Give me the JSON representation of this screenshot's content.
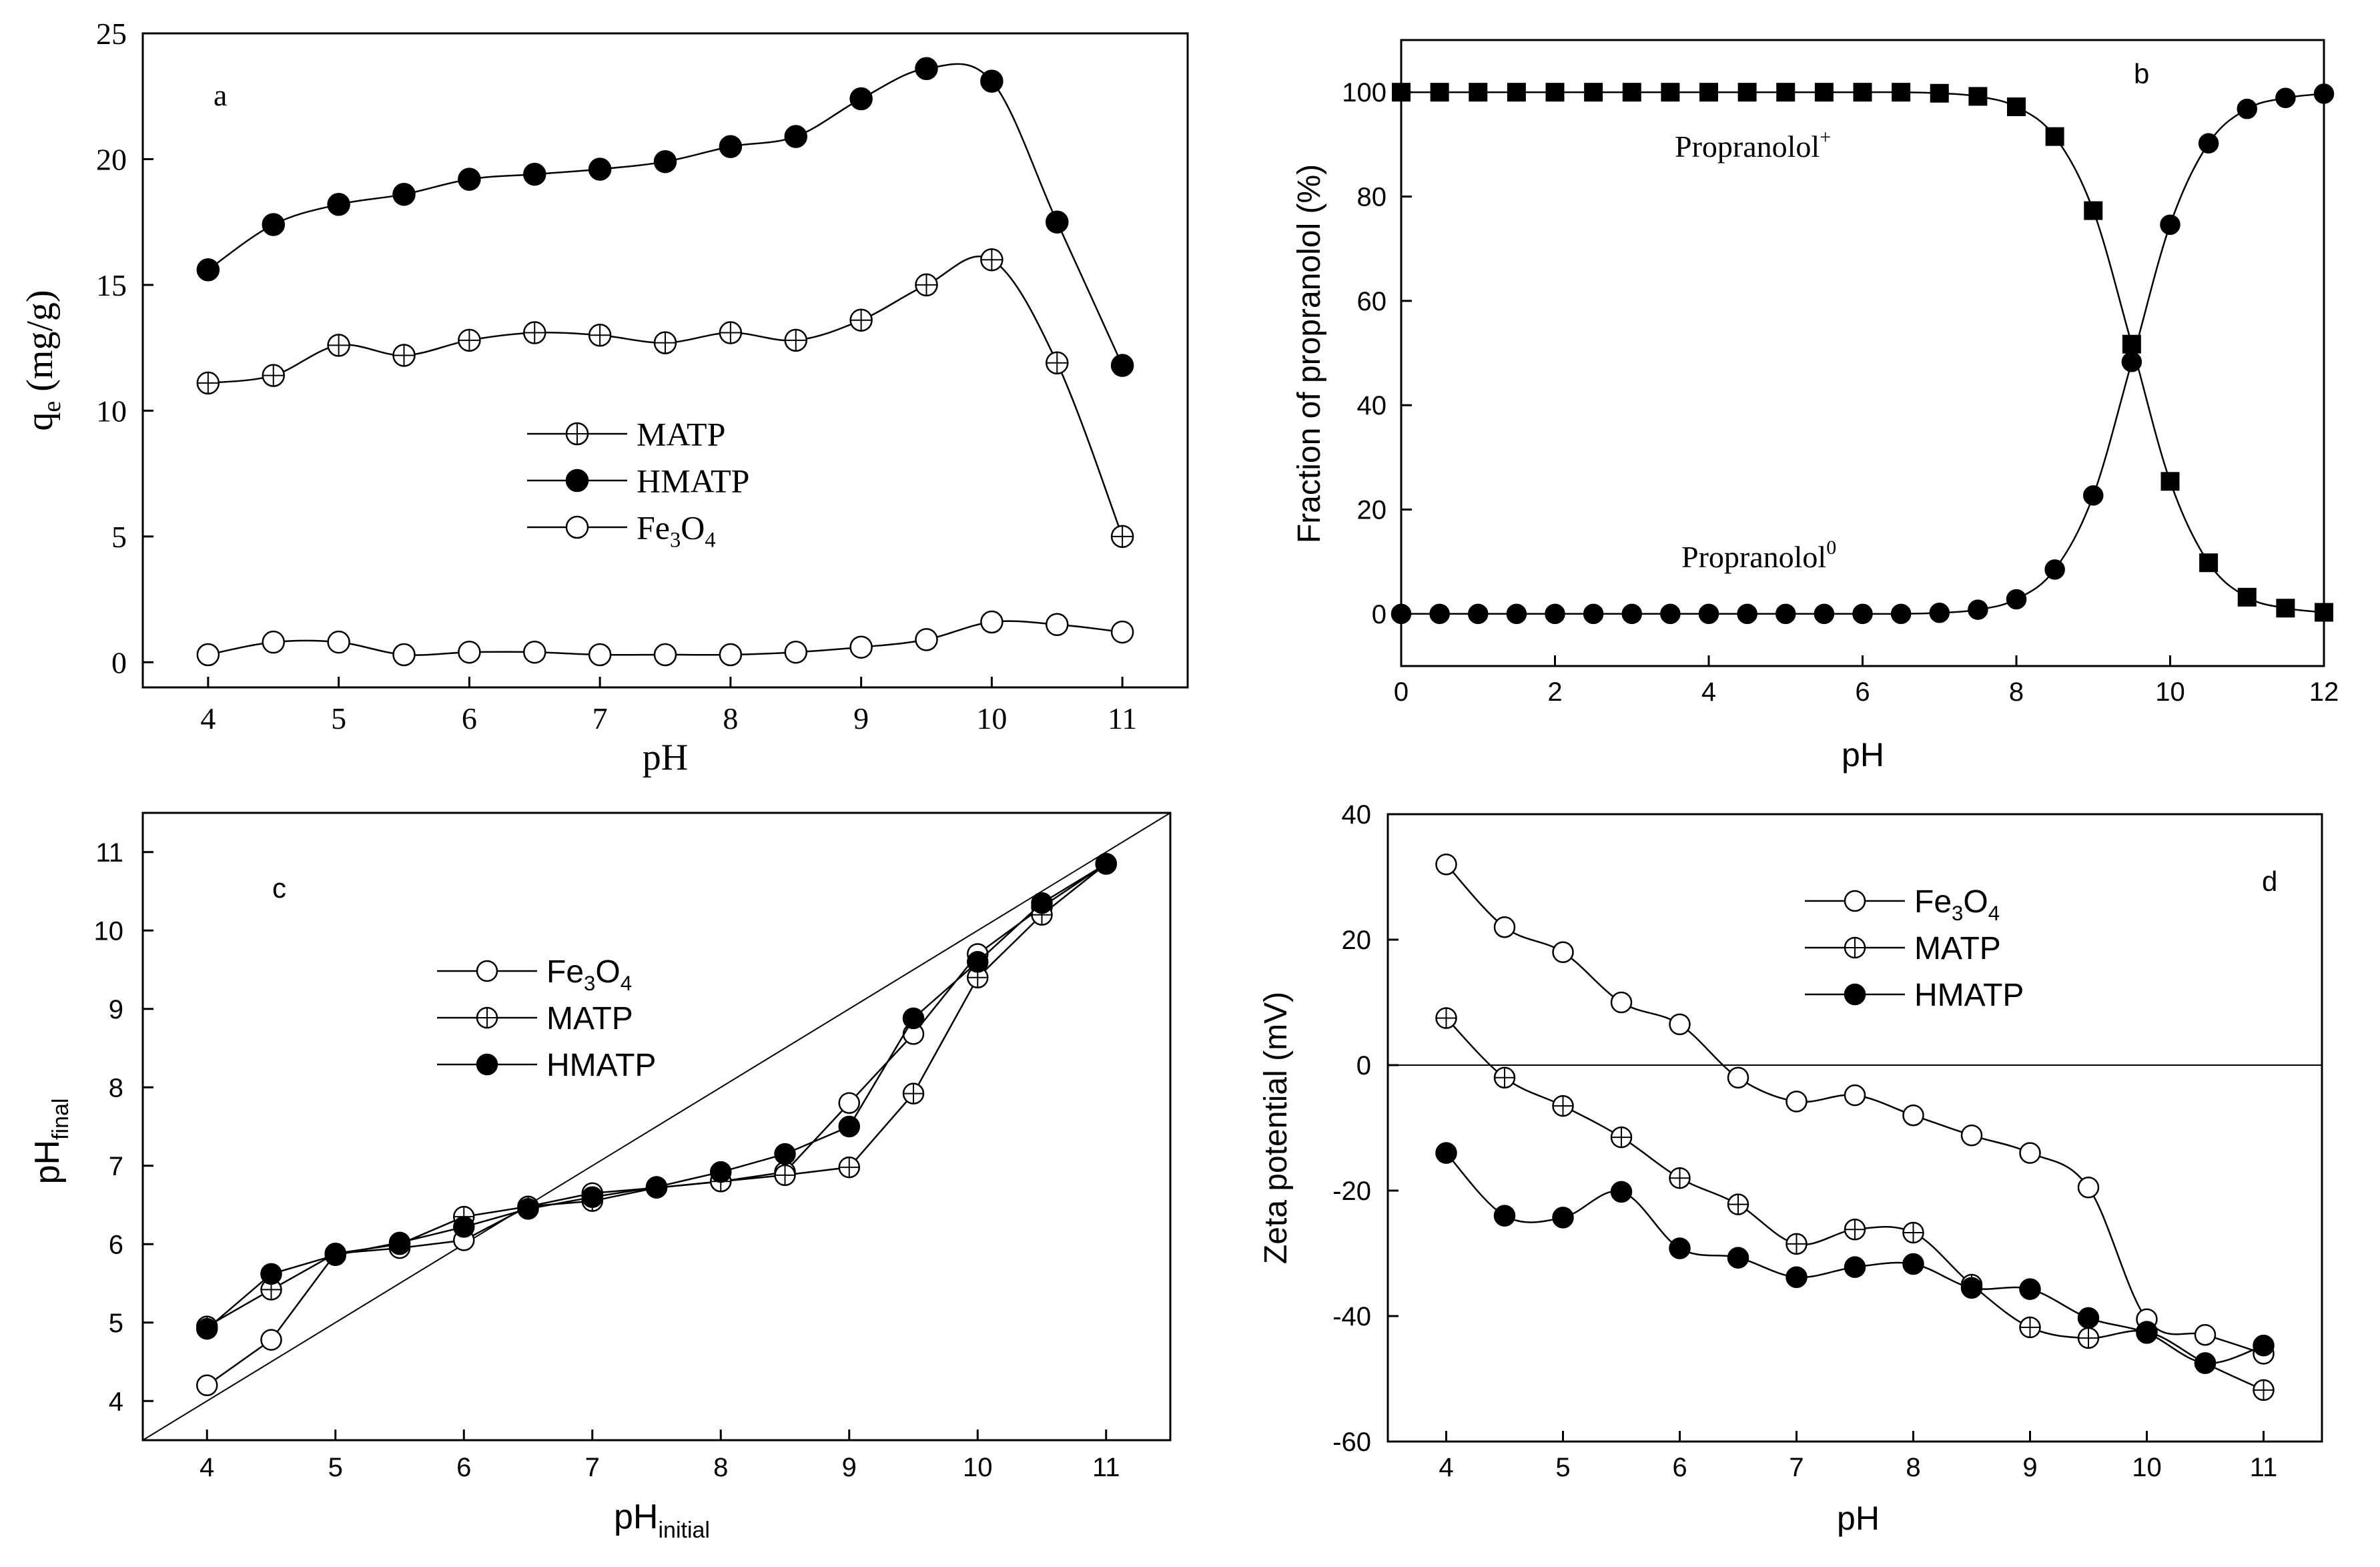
{
  "chart_data": [
    {
      "id": "a",
      "type": "line",
      "panel_label": "a",
      "xlabel": "pH",
      "ylabel_main": "q",
      "ylabel_sub": "e",
      "ylabel_tail": " (mg/g)",
      "xlim": [
        3.5,
        11.5
      ],
      "ylim": [
        -1,
        25
      ],
      "xticks": [
        "4",
        "5",
        "6",
        "7",
        "8",
        "9",
        "10",
        "11"
      ],
      "yticks": [
        "0",
        "5",
        "10",
        "15",
        "20",
        "25"
      ],
      "x": [
        4,
        4.5,
        5,
        5.5,
        6,
        6.5,
        7,
        7.5,
        8,
        8.5,
        9,
        9.5,
        10,
        10.5,
        11
      ],
      "series": [
        {
          "name": "MATP",
          "legend_parts": [
            "MATP"
          ],
          "marker": "crossed",
          "values": [
            11.1,
            11.4,
            12.6,
            12.2,
            12.8,
            13.1,
            13.0,
            12.7,
            13.1,
            12.8,
            13.6,
            15.0,
            16.0,
            11.9,
            5.0
          ]
        },
        {
          "name": "HMATP",
          "legend_parts": [
            "HMATP"
          ],
          "marker": "filled",
          "values": [
            15.6,
            17.4,
            18.2,
            18.6,
            19.2,
            19.4,
            19.6,
            19.9,
            20.5,
            20.9,
            22.4,
            23.6,
            23.1,
            17.5,
            11.8
          ]
        },
        {
          "name": "Fe3O4",
          "legend_parts": [
            "Fe",
            "3",
            "O",
            "4"
          ],
          "marker": "open",
          "values": [
            0.3,
            0.8,
            0.8,
            0.3,
            0.4,
            0.4,
            0.3,
            0.3,
            0.3,
            0.4,
            0.6,
            0.9,
            1.6,
            1.5,
            1.2
          ]
        }
      ]
    },
    {
      "id": "b",
      "type": "line",
      "panel_label": "b",
      "xlabel": "pH",
      "ylabel": "Fraction of propranolol (%)",
      "xlim": [
        0,
        12
      ],
      "ylim": [
        -10,
        110
      ],
      "xticks": [
        "0",
        "2",
        "4",
        "6",
        "8",
        "10",
        "12"
      ],
      "yticks": [
        "0",
        "20",
        "40",
        "60",
        "80",
        "100"
      ],
      "x": [
        0,
        0.5,
        1,
        1.5,
        2,
        2.5,
        3,
        3.5,
        4,
        4.5,
        5,
        5.5,
        6,
        6.5,
        7,
        7.5,
        8,
        8.5,
        9,
        9.5,
        10,
        10.5,
        11,
        11.5,
        12
      ],
      "series": [
        {
          "name": "Propranolol+",
          "marker": "square",
          "values": [
            100,
            100,
            100,
            100,
            100,
            100,
            100,
            100,
            100,
            100,
            100,
            100,
            100,
            100,
            99.8,
            99.2,
            97.2,
            91.5,
            77.3,
            51.7,
            25.4,
            9.8,
            3.2,
            1.1,
            0.3
          ]
        },
        {
          "name": "Propranolol0",
          "marker": "filled",
          "values": [
            0,
            0,
            0,
            0,
            0,
            0,
            0,
            0,
            0,
            0,
            0,
            0,
            0,
            0,
            0.2,
            0.8,
            2.8,
            8.5,
            22.7,
            48.3,
            74.6,
            90.2,
            96.8,
            98.9,
            99.7
          ]
        }
      ],
      "annotations": [
        {
          "text": "Propranolol",
          "sup": "+"
        },
        {
          "text": "Propranolol",
          "sup": "0"
        }
      ]
    },
    {
      "id": "c",
      "type": "line",
      "panel_label": "c",
      "xlabel_main": "pH",
      "xlabel_sub": "initial",
      "ylabel_main": "pH",
      "ylabel_sub": "final",
      "xlim": [
        3.5,
        11.5
      ],
      "ylim": [
        3.5,
        11.5
      ],
      "xticks": [
        "4",
        "5",
        "6",
        "7",
        "8",
        "9",
        "10",
        "11"
      ],
      "yticks": [
        "4",
        "5",
        "6",
        "7",
        "8",
        "9",
        "10",
        "11"
      ],
      "reference_line": "y = x",
      "x": [
        4,
        4.5,
        5,
        5.5,
        6,
        6.5,
        7,
        7.5,
        8,
        8.5,
        9,
        9.5,
        10,
        10.5,
        11
      ],
      "series": [
        {
          "name": "Fe3O4",
          "legend_parts": [
            "Fe",
            "3",
            "O",
            "4"
          ],
          "marker": "open",
          "values": [
            4.2,
            4.78,
            5.88,
            5.95,
            6.05,
            6.48,
            6.65,
            6.72,
            6.8,
            6.92,
            7.8,
            8.68,
            9.7,
            10.3,
            10.85
          ]
        },
        {
          "name": "MATP",
          "legend_parts": [
            "MATP"
          ],
          "marker": "crossed",
          "values": [
            4.95,
            5.42,
            5.88,
            6.0,
            6.35,
            6.48,
            6.55,
            6.72,
            6.8,
            6.88,
            6.98,
            7.92,
            9.4,
            10.2,
            10.85
          ]
        },
        {
          "name": "HMATP",
          "legend_parts": [
            "HMATP"
          ],
          "marker": "filled",
          "values": [
            4.92,
            5.62,
            5.86,
            6.02,
            6.22,
            6.45,
            6.6,
            6.73,
            6.92,
            7.15,
            7.5,
            8.88,
            9.6,
            10.35,
            10.85
          ]
        }
      ]
    },
    {
      "id": "d",
      "type": "line",
      "panel_label": "d",
      "xlabel": "pH",
      "ylabel": "Zeta potential (mV)",
      "xlim": [
        3.5,
        11.5
      ],
      "ylim": [
        -60,
        40
      ],
      "xticks": [
        "4",
        "5",
        "6",
        "7",
        "8",
        "9",
        "10",
        "11"
      ],
      "yticks": [
        "40",
        "20",
        "0",
        "-20",
        "-40",
        "-60"
      ],
      "ytick_values": [
        40,
        20,
        0,
        -20,
        -40,
        -60
      ],
      "reference_line": "y = 0",
      "x": [
        4,
        4.5,
        5,
        5.5,
        6,
        6.5,
        7,
        7.5,
        8,
        8.5,
        9,
        9.5,
        10,
        10.5,
        11
      ],
      "series": [
        {
          "name": "Fe3O4",
          "legend_parts": [
            "Fe",
            "3",
            "O",
            "4"
          ],
          "marker": "open",
          "values": [
            32,
            22,
            18,
            10,
            6.5,
            -2,
            -5.8,
            -4.8,
            -8,
            -11.2,
            -14,
            -19.5,
            -40.5,
            -43,
            -46
          ]
        },
        {
          "name": "MATP",
          "legend_parts": [
            "MATP"
          ],
          "marker": "crossed",
          "values": [
            7.5,
            -2,
            -6.5,
            -11.5,
            -18,
            -22.2,
            -28.5,
            -26.2,
            -26.7,
            -35,
            -41.8,
            -43.5,
            -42.5,
            -47.5,
            -51.8
          ]
        },
        {
          "name": "HMATP",
          "legend_parts": [
            "HMATP"
          ],
          "marker": "filled",
          "values": [
            -14,
            -24,
            -24.3,
            -20.2,
            -29.2,
            -30.7,
            -33.8,
            -32.2,
            -31.7,
            -35.5,
            -35.7,
            -40.3,
            -42.7,
            -47.5,
            -44.7
          ]
        }
      ]
    }
  ]
}
